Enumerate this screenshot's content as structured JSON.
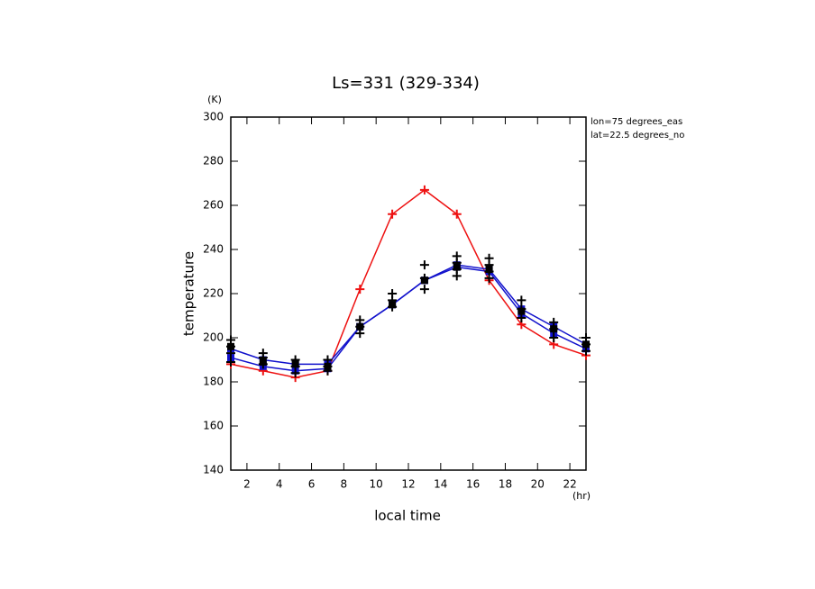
{
  "chart_data": {
    "type": "line",
    "title": "Ls=331 (329-334)",
    "x_label": "local time",
    "y_label": "temperature",
    "x_unit": "(hr)",
    "y_unit": "(K)",
    "annotations": [
      "lon=75 degrees_eas",
      "lat=22.5 degrees_no"
    ],
    "x": [
      1,
      3,
      5,
      7,
      9,
      11,
      13,
      15,
      17,
      19,
      21,
      23
    ],
    "xlim": [
      1,
      23
    ],
    "xticks": [
      2,
      4,
      6,
      8,
      10,
      12,
      14,
      16,
      18,
      20,
      22
    ],
    "ylim": [
      140,
      300
    ],
    "yticks": [
      140,
      160,
      180,
      200,
      220,
      240,
      260,
      280,
      300
    ],
    "series": [
      {
        "color": "#ee1111",
        "marker": "plus",
        "values": [
          188,
          185,
          182,
          185,
          222,
          256,
          267,
          256,
          226,
          206,
          197,
          192
        ]
      },
      {
        "color": "#1111cc",
        "marker": "square",
        "values": [
          195,
          190,
          188,
          188,
          205,
          215,
          226,
          233,
          231,
          213,
          205,
          197
        ]
      },
      {
        "color": "#1111cc",
        "marker": "square",
        "values": [
          191,
          187,
          185,
          186,
          205,
          215,
          226,
          232,
          230,
          211,
          202,
          195
        ]
      },
      {
        "color": "#000000",
        "marker": "square",
        "line": false,
        "values": [
          196,
          189,
          188,
          187,
          205,
          215,
          226,
          232,
          231,
          212,
          204,
          197
        ]
      },
      {
        "color": "#000000",
        "marker": "plus",
        "line": false,
        "x": [
          1,
          1,
          1,
          1,
          3,
          3,
          3,
          5,
          5,
          5,
          7,
          7,
          7,
          9,
          9,
          9,
          11,
          11,
          11,
          13,
          13,
          13,
          15,
          15,
          15,
          15,
          17,
          17,
          17,
          17,
          19,
          19,
          19,
          21,
          21,
          21,
          23,
          23,
          23
        ],
        "values": [
          199,
          196,
          193,
          189,
          193,
          191,
          188,
          190,
          187,
          184,
          190,
          187,
          185,
          208,
          205,
          202,
          220,
          217,
          214,
          233,
          227,
          222,
          237,
          234,
          231,
          228,
          236,
          233,
          230,
          227,
          217,
          213,
          209,
          207,
          204,
          200,
          200,
          197,
          194
        ]
      }
    ]
  }
}
